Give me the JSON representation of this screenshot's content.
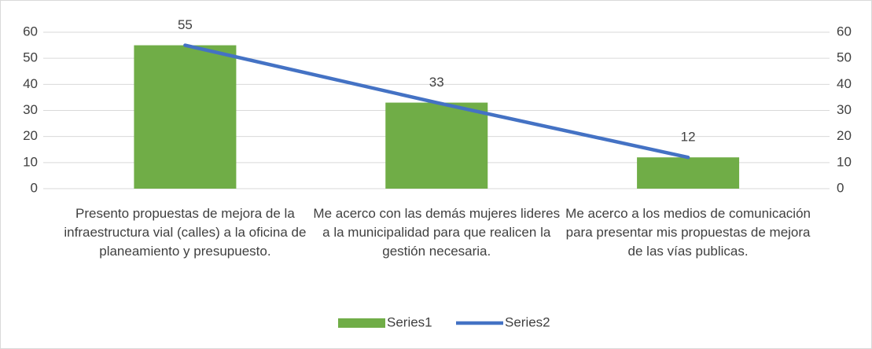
{
  "chart_data": {
    "type": "bar",
    "categories": [
      "Presento propuestas de mejora de la infraestructura vial (calles) a la oficina de planeamiento y presupuesto.",
      "Me acerco con las demás mujeres lideres a la municipalidad para que realicen la gestión necesaria.",
      "Me acerco a los medios de comunicación para presentar mis propuestas de mejora de las vías publicas."
    ],
    "series": [
      {
        "name": "Series1",
        "type": "bar",
        "color": "#70ad47",
        "values": [
          55,
          33,
          12
        ]
      },
      {
        "name": "Series2",
        "type": "line",
        "axis": "y2",
        "color": "#4472c4",
        "values": [
          55,
          33,
          12
        ]
      }
    ],
    "ylim": [
      0,
      60
    ],
    "yticks": [
      0,
      10,
      20,
      30,
      40,
      50,
      60
    ],
    "y2lim": [
      0,
      60
    ],
    "y2ticks": [
      0,
      10,
      20,
      30,
      40,
      50,
      60
    ],
    "grid": true,
    "legend": "bottom"
  }
}
